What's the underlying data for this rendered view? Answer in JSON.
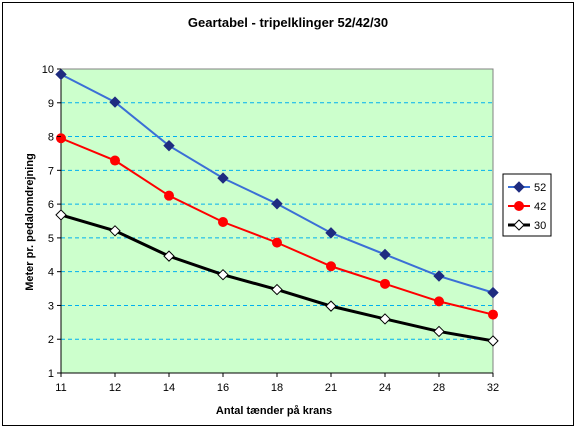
{
  "chart_data": {
    "type": "line",
    "title": "Geartabel - tripelklinger 52/42/30",
    "xlabel": "Antal tænder på krans",
    "ylabel": "Meter pr. pedalomdrejning",
    "categories": [
      "11",
      "12",
      "14",
      "16",
      "18",
      "21",
      "24",
      "28",
      "32"
    ],
    "ylim": [
      1,
      10
    ],
    "yticks": [
      1,
      2,
      3,
      4,
      5,
      6,
      7,
      8,
      9,
      10
    ],
    "grid": "horizontal dashed",
    "legend_position": "right",
    "plot_background": "#ccffcc",
    "series": [
      {
        "name": "52",
        "color": "#3b6fd6",
        "marker": "diamond-filled",
        "marker_color": "#1f2c80",
        "values": [
          9.84,
          9.02,
          7.73,
          6.77,
          6.01,
          5.15,
          4.51,
          3.87,
          3.38
        ]
      },
      {
        "name": "42",
        "color": "#ff0000",
        "marker": "circle-filled",
        "marker_color": "#ff0000",
        "values": [
          7.95,
          7.29,
          6.25,
          5.47,
          4.86,
          4.16,
          3.64,
          3.12,
          2.73
        ]
      },
      {
        "name": "30",
        "color": "#000000",
        "marker": "diamond-open",
        "marker_color": "#000000",
        "values": [
          5.68,
          5.21,
          4.46,
          3.91,
          3.47,
          2.98,
          2.6,
          2.23,
          1.95
        ]
      }
    ]
  }
}
